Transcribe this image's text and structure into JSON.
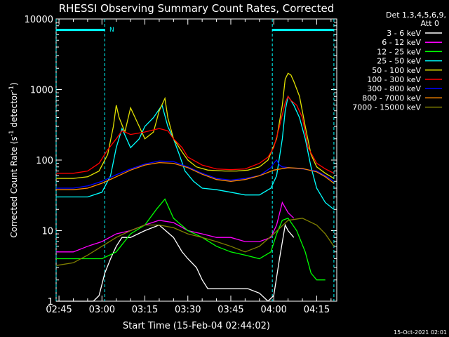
{
  "chart_data": {
    "type": "line",
    "title": "RHESSI Observing Summary Count Rates, Corrected",
    "xlabel": "Start Time (15-Feb-04 02:44:02)",
    "ylabel_main": "Corrected Count Rate (s",
    "ylabel_sup1": "-1",
    "ylabel_mid": " detector",
    "ylabel_sup2": "-1",
    "ylabel_end": ")",
    "yscale": "log",
    "ylim": [
      1,
      10000
    ],
    "xlim_minutes": [
      -1,
      97
    ],
    "x_ticks": [
      {
        "label": "02:45",
        "t": 0
      },
      {
        "label": "03:00",
        "t": 15
      },
      {
        "label": "03:15",
        "t": 30
      },
      {
        "label": "03:30",
        "t": 45
      },
      {
        "label": "03:45",
        "t": 60
      },
      {
        "label": "04:00",
        "t": 75
      },
      {
        "label": "04:15",
        "t": 90
      }
    ],
    "y_ticks": [
      {
        "label": "1",
        "v": 1
      },
      {
        "label": "10",
        "v": 10
      },
      {
        "label": "100",
        "v": 100
      },
      {
        "label": "1000",
        "v": 1000
      },
      {
        "label": "10000",
        "v": 10000
      }
    ],
    "legend": {
      "position": "right",
      "header1": "Det 1,3,4,5,6,9,",
      "header2": "Att 0"
    },
    "annotation_n": "N",
    "footer_date": "15-Oct-2021 02:01",
    "night_markers_minutes": [
      -1,
      16,
      74.5,
      96
    ],
    "night_bars": [
      {
        "from": -1,
        "to": 16,
        "level": 7000
      },
      {
        "from": 74.5,
        "to": 96,
        "level": 7000
      }
    ],
    "series": [
      {
        "name": "3 - 6 keV",
        "color": "#ffffff",
        "x": [
          -1,
          12,
          14,
          16,
          18,
          20,
          22,
          25,
          30,
          35,
          40,
          43,
          45,
          48,
          50,
          52,
          55,
          58,
          60,
          63,
          66,
          70,
          73,
          75,
          77,
          79,
          80,
          82
        ],
        "y": [
          1,
          1,
          1.2,
          2.5,
          4,
          6,
          8,
          8,
          10,
          12,
          8,
          5,
          4,
          3,
          2,
          1.5,
          1.5,
          1.5,
          1.5,
          1.5,
          1.5,
          1.3,
          1,
          1.2,
          4,
          12,
          10,
          8
        ]
      },
      {
        "name": "6 - 12 keV",
        "color": "#ff00ff",
        "x": [
          -1,
          5,
          10,
          15,
          20,
          25,
          30,
          35,
          40,
          45,
          50,
          55,
          60,
          65,
          70,
          74,
          76,
          78,
          80,
          82
        ],
        "y": [
          5,
          5,
          6,
          7,
          9,
          10,
          12,
          14,
          13,
          10,
          9,
          8,
          8,
          7,
          7,
          8,
          12,
          25,
          18,
          15
        ]
      },
      {
        "name": "12 - 25 keV",
        "color": "#00ff00",
        "x": [
          -1,
          5,
          10,
          15,
          20,
          25,
          30,
          34,
          37,
          40,
          45,
          50,
          55,
          60,
          65,
          70,
          74,
          76,
          78,
          80,
          83,
          86,
          88,
          90,
          93
        ],
        "y": [
          4,
          4,
          4,
          4,
          5,
          9,
          12,
          20,
          28,
          15,
          10,
          8,
          6,
          5,
          4.5,
          4,
          5,
          9,
          14,
          15,
          10,
          5,
          2.5,
          2,
          2
        ]
      },
      {
        "name": "25 - 50 keV",
        "color": "#00ffff",
        "x": [
          -1,
          5,
          10,
          15,
          18,
          20,
          22,
          25,
          28,
          30,
          33,
          36,
          38,
          40,
          42,
          44,
          47,
          50,
          55,
          60,
          65,
          70,
          74,
          76,
          78,
          79,
          80,
          81,
          82,
          84,
          86,
          88,
          90,
          93,
          96
        ],
        "y": [
          30,
          30,
          30,
          35,
          60,
          150,
          280,
          150,
          200,
          300,
          400,
          600,
          300,
          200,
          120,
          70,
          50,
          40,
          38,
          35,
          32,
          32,
          40,
          60,
          200,
          500,
          800,
          700,
          600,
          400,
          200,
          80,
          40,
          25,
          20
        ]
      },
      {
        "name": "50 - 100 keV",
        "color": "#e0e000",
        "x": [
          -1,
          5,
          10,
          14,
          17,
          19,
          20,
          21,
          23,
          25,
          28,
          30,
          33,
          35,
          37,
          38,
          40,
          43,
          45,
          48,
          52,
          58,
          62,
          66,
          70,
          73,
          76,
          78,
          79,
          80,
          81,
          82,
          84,
          86,
          88,
          90,
          93,
          96
        ],
        "y": [
          55,
          55,
          58,
          70,
          120,
          300,
          600,
          400,
          250,
          550,
          300,
          200,
          250,
          500,
          750,
          400,
          200,
          130,
          100,
          80,
          72,
          70,
          70,
          72,
          80,
          100,
          200,
          600,
          1400,
          1700,
          1600,
          1300,
          800,
          300,
          120,
          80,
          65,
          55
        ]
      },
      {
        "name": "100 - 300 keV",
        "color": "#ff0000",
        "x": [
          -1,
          5,
          10,
          14,
          17,
          20,
          22,
          25,
          30,
          35,
          38,
          40,
          43,
          45,
          50,
          55,
          60,
          65,
          70,
          73,
          75,
          77,
          79,
          80,
          81,
          83,
          85,
          87,
          90,
          93,
          96
        ],
        "y": [
          65,
          65,
          70,
          90,
          140,
          200,
          260,
          230,
          250,
          280,
          260,
          200,
          150,
          110,
          85,
          75,
          73,
          75,
          90,
          110,
          150,
          300,
          650,
          800,
          700,
          600,
          400,
          150,
          90,
          75,
          65
        ]
      },
      {
        "name": "300 - 800 keV",
        "color": "#0000ff",
        "x": [
          -1,
          5,
          10,
          15,
          20,
          25,
          30,
          35,
          40,
          45,
          50,
          55,
          60,
          65,
          70,
          74,
          75,
          76,
          77,
          78,
          80,
          85,
          90,
          93,
          96
        ],
        "y": [
          40,
          40,
          43,
          50,
          62,
          75,
          88,
          97,
          95,
          80,
          65,
          55,
          52,
          55,
          60,
          78,
          90,
          100,
          85,
          80,
          78,
          75,
          70,
          60,
          50
        ]
      },
      {
        "name": "800 - 7000 keV",
        "color": "#ff8800",
        "x": [
          -1,
          5,
          10,
          15,
          20,
          25,
          30,
          35,
          40,
          45,
          50,
          55,
          60,
          65,
          70,
          75,
          80,
          85,
          90,
          93,
          96
        ],
        "y": [
          38,
          38,
          40,
          47,
          58,
          72,
          85,
          92,
          90,
          78,
          63,
          53,
          50,
          53,
          60,
          72,
          78,
          76,
          68,
          58,
          47
        ]
      },
      {
        "name": "7000 - 15000 keV",
        "color": "#808000",
        "x": [
          -1,
          5,
          10,
          15,
          20,
          25,
          30,
          35,
          40,
          45,
          50,
          55,
          60,
          65,
          70,
          75,
          80,
          85,
          90,
          93,
          96
        ],
        "y": [
          3.2,
          3.5,
          4.5,
          6,
          8,
          10,
          12,
          12,
          11,
          9,
          8,
          7,
          6,
          5,
          6,
          9,
          14,
          15,
          12,
          9,
          6
        ]
      }
    ]
  }
}
